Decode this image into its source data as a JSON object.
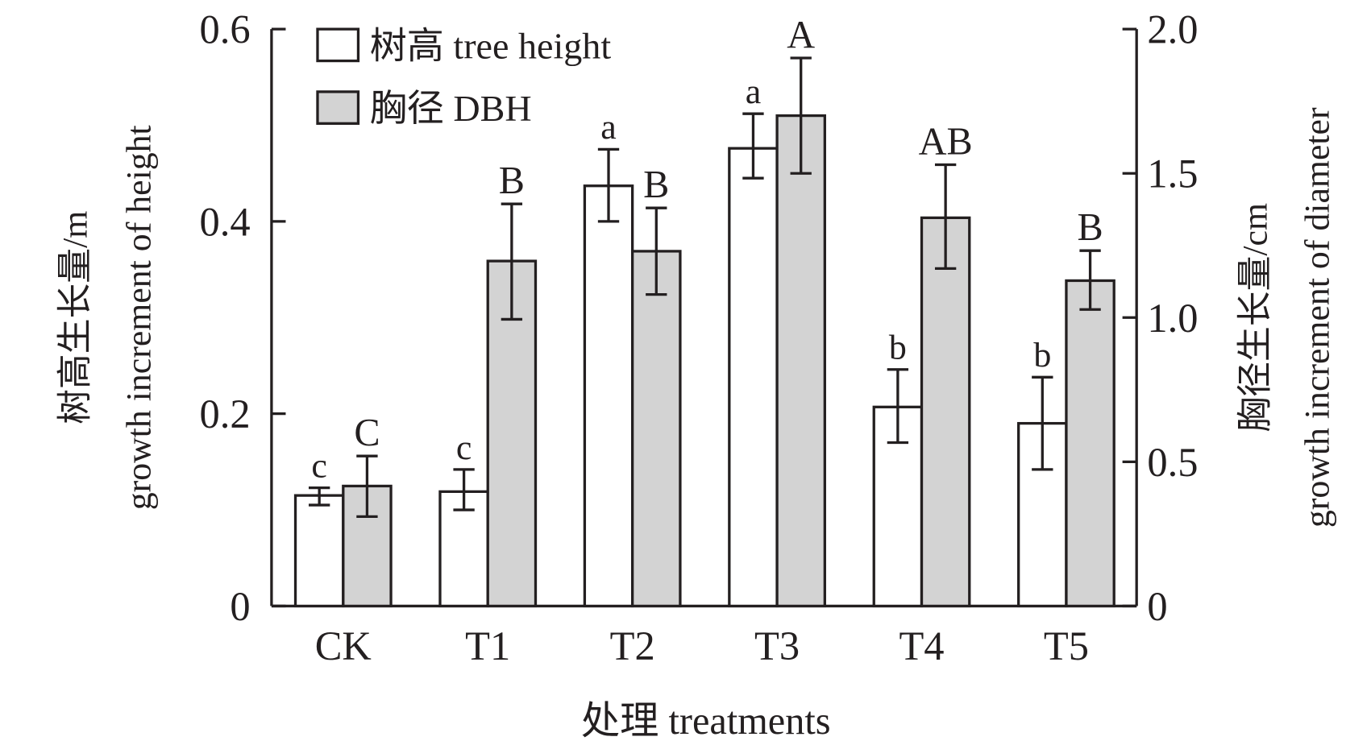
{
  "chart_data": {
    "type": "bar",
    "categories": [
      "CK",
      "T1",
      "T2",
      "T3",
      "T4",
      "T5"
    ],
    "xlabel": "处理 treatments",
    "ylabel_left": [
      "树高生长量/m",
      "growth increment of height"
    ],
    "ylabel_right": [
      "胸径生长量/cm",
      "growth increment of diameter"
    ],
    "ylim_left": [
      0,
      0.6
    ],
    "yticks_left": [
      0,
      0.2,
      0.4,
      0.6
    ],
    "ytick_labels_left": [
      "0",
      "0.2",
      "0.4",
      "0.6"
    ],
    "ylim_right": [
      0,
      2.0
    ],
    "yticks_right": [
      0,
      0.5,
      1.0,
      1.5,
      2.0
    ],
    "ytick_labels_right": [
      "0",
      "0.5",
      "1.0",
      "1.5",
      "2.0"
    ],
    "grid": false,
    "legend_position": "top-left",
    "series": [
      {
        "name": "树高 tree height",
        "axis": "left",
        "color": "#ffffff",
        "values": [
          0.115,
          0.119,
          0.437,
          0.476,
          0.207,
          0.19
        ],
        "error_low": [
          0.105,
          0.1,
          0.4,
          0.445,
          0.17,
          0.142
        ],
        "error_high": [
          0.123,
          0.142,
          0.475,
          0.512,
          0.246,
          0.238
        ],
        "letters": [
          "c",
          "c",
          "a",
          "a",
          "b",
          "b"
        ]
      },
      {
        "name": "胸径 DBH",
        "axis": "right",
        "color": "#d3d3d3",
        "values": [
          0.416,
          1.196,
          1.23,
          1.7,
          1.346,
          1.128
        ],
        "error_low": [
          0.31,
          0.994,
          1.08,
          1.5,
          1.17,
          1.028
        ],
        "error_high": [
          0.52,
          1.394,
          1.38,
          1.9,
          1.53,
          1.232
        ],
        "letters": [
          "C",
          "B",
          "B",
          "A",
          "AB",
          "B"
        ]
      }
    ]
  }
}
